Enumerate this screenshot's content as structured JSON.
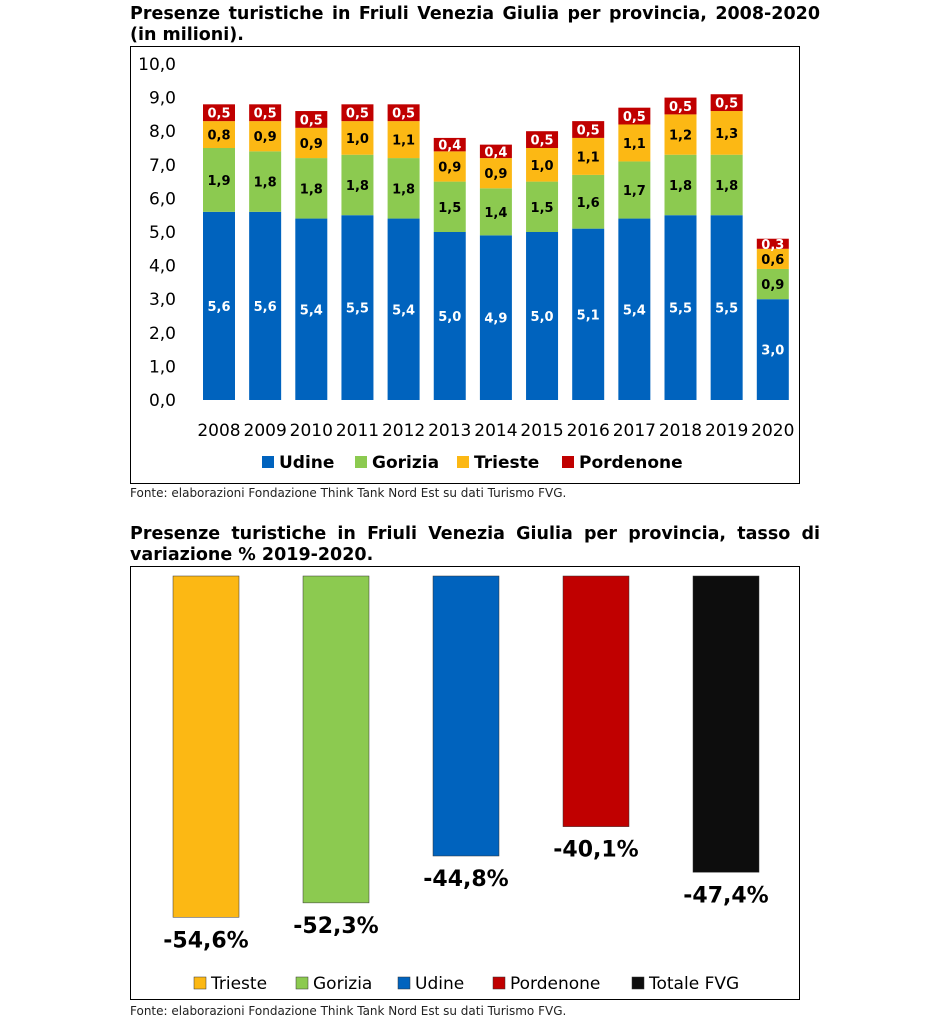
{
  "chart_data": [
    {
      "type": "bar",
      "stacked": true,
      "title": "Presenze turistiche in Friuli Venezia Giulia per provincia, 2008-2020 (in milioni).",
      "source": "Fonte: elaborazioni Fondazione Think Tank Nord Est su dati Turismo FVG.",
      "categories": [
        "2008",
        "2009",
        "2010",
        "2011",
        "2012",
        "2013",
        "2014",
        "2015",
        "2016",
        "2017",
        "2018",
        "2019",
        "2020"
      ],
      "ylim": [
        0,
        10
      ],
      "yticks": [
        "0,0",
        "1,0",
        "2,0",
        "3,0",
        "4,0",
        "5,0",
        "6,0",
        "7,0",
        "8,0",
        "9,0",
        "10,0"
      ],
      "legend_position": "bottom",
      "series": [
        {
          "name": "Udine",
          "color": "#0063be",
          "label_color": "#ffffff",
          "values": [
            5.6,
            5.6,
            5.4,
            5.5,
            5.4,
            5.0,
            4.9,
            5.0,
            5.1,
            5.4,
            5.5,
            5.5,
            3.0
          ],
          "labels": [
            "5,6",
            "5,6",
            "5,4",
            "5,5",
            "5,4",
            "5,0",
            "4,9",
            "5,0",
            "5,1",
            "5,4",
            "5,5",
            "5,5",
            "3,0"
          ]
        },
        {
          "name": "Gorizia",
          "color": "#8cca50",
          "label_color": "#000000",
          "values": [
            1.9,
            1.8,
            1.8,
            1.8,
            1.8,
            1.5,
            1.4,
            1.5,
            1.6,
            1.7,
            1.8,
            1.8,
            0.9
          ],
          "labels": [
            "1,9",
            "1,8",
            "1,8",
            "1,8",
            "1,8",
            "1,5",
            "1,4",
            "1,5",
            "1,6",
            "1,7",
            "1,8",
            "1,8",
            "0,9"
          ]
        },
        {
          "name": "Trieste",
          "color": "#fcb814",
          "label_color": "#000000",
          "values": [
            0.8,
            0.9,
            0.9,
            1.0,
            1.1,
            0.9,
            0.9,
            1.0,
            1.1,
            1.1,
            1.2,
            1.3,
            0.6
          ],
          "labels": [
            "0,8",
            "0,9",
            "0,9",
            "1,0",
            "1,1",
            "0,9",
            "0,9",
            "1,0",
            "1,1",
            "1,1",
            "1,2",
            "1,3",
            "0,6"
          ]
        },
        {
          "name": "Pordenone",
          "color": "#c00000",
          "label_color": "#ffffff",
          "values": [
            0.5,
            0.5,
            0.5,
            0.5,
            0.5,
            0.4,
            0.4,
            0.5,
            0.5,
            0.5,
            0.5,
            0.5,
            0.3
          ],
          "labels": [
            "0,5",
            "0,5",
            "0,5",
            "0,5",
            "0,5",
            "0,4",
            "0,4",
            "0,5",
            "0,5",
            "0,5",
            "0,5",
            "0,5",
            "0,3"
          ]
        }
      ]
    },
    {
      "type": "bar",
      "title": "Presenze turistiche in Friuli Venezia Giulia per provincia, tasso di variazione % 2019-2020.",
      "source": "Fonte: elaborazioni Fondazione Think Tank Nord Est su dati Turismo FVG.",
      "categories": [
        "Trieste",
        "Gorizia",
        "Udine",
        "Pordenone",
        "Totale FVG"
      ],
      "values": [
        -54.6,
        -52.3,
        -44.8,
        -40.1,
        -47.4
      ],
      "labels": [
        "-54,6%",
        "-52,3%",
        "-44,8%",
        "-40,1%",
        "-47,4%"
      ],
      "colors": [
        "#fcb814",
        "#8cca50",
        "#0063be",
        "#c00000",
        "#0d0d0d"
      ],
      "ylim": [
        -58,
        0
      ],
      "legend_position": "bottom"
    }
  ]
}
